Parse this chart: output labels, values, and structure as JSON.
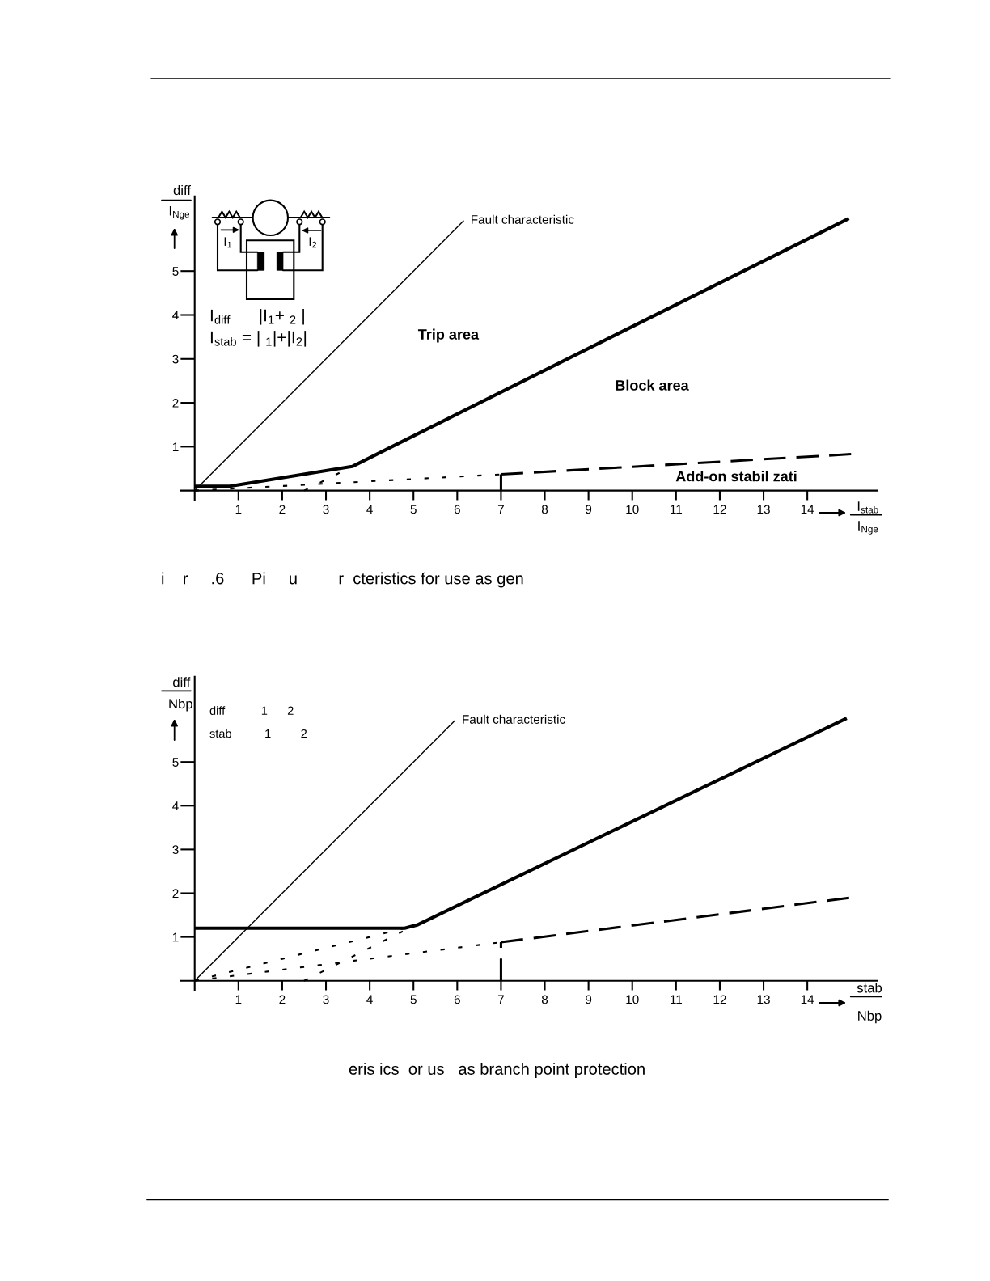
{
  "chart_data": [
    {
      "type": "line",
      "xlabel": "I$_{stab}$\nI$_{Nge}$",
      "ylabel": "diff\nI$_{Nge}$",
      "xlim": [
        -0.32,
        15.6
      ],
      "ylim": [
        -0.22,
        6.7
      ],
      "xticks": [
        1,
        2,
        3,
        4,
        5,
        6,
        7,
        8,
        9,
        10,
        11,
        12,
        13,
        14
      ],
      "yticks": [
        1,
        2,
        3,
        4,
        5
      ],
      "series": [
        {
          "name": "Fault characteristic",
          "color": "#000000",
          "line_style": "solid",
          "x": [
            0,
            6.15
          ],
          "values": [
            0,
            6.15
          ]
        },
        {
          "color": "#000000",
          "line_style": "solid",
          "x": [
            0,
            0.8,
            3.6,
            14.95
          ],
          "values": [
            0.1,
            0.1,
            0.55,
            6.2
          ]
        },
        {
          "color": "#000000",
          "line_style": "dotted",
          "x": [
            2.5,
            3.6
          ],
          "values": [
            0,
            0.55
          ]
        },
        {
          "color": "#000000",
          "line_style": "dotted",
          "x": [
            0,
            7
          ],
          "values": [
            0,
            0.37
          ]
        },
        {
          "color": "#000000",
          "line_style": "dashed",
          "x": [
            7,
            15
          ],
          "values": [
            0.37,
            0.83
          ]
        },
        {
          "color": "#000000",
          "line_style": "dashed",
          "x": [
            7,
            7
          ],
          "values": [
            0,
            0.37
          ]
        }
      ],
      "annotations": [
        "Trip area",
        "Block area",
        "Add-on stabil zati",
        "I$_{diff}$      |I$_{1}$+ $_{2}$ |",
        "I$_{stab}$ = | $_{1}$|+|I$_{2}$|",
        "I$_{1}$",
        "I$_{2}$",
        "i    r     .6      Pi     u         r  cteristics for use as gen"
      ]
    },
    {
      "type": "line",
      "xlabel": "stab\nNbp",
      "ylabel": "diff\nNbp",
      "xlim": [
        -0.32,
        15.6
      ],
      "ylim": [
        -0.22,
        6.95
      ],
      "xticks": [
        1,
        2,
        3,
        4,
        5,
        6,
        7,
        8,
        9,
        10,
        11,
        12,
        13,
        14
      ],
      "yticks": [
        1,
        2,
        3,
        4,
        5
      ],
      "series": [
        {
          "name": "Fault characteristic",
          "color": "#000000",
          "line_style": "solid",
          "x": [
            0,
            5.95
          ],
          "values": [
            0,
            5.95
          ]
        },
        {
          "color": "#000000",
          "line_style": "solid",
          "x": [
            0,
            4.8,
            5.1,
            14.9
          ],
          "values": [
            1.2,
            1.2,
            1.28,
            6.0
          ]
        },
        {
          "color": "#000000",
          "line_style": "dotted",
          "x": [
            0,
            4.8
          ],
          "values": [
            0,
            1.2
          ]
        },
        {
          "color": "#000000",
          "line_style": "dotted",
          "x": [
            2.5,
            4.9
          ],
          "values": [
            0,
            1.2
          ]
        },
        {
          "color": "#000000",
          "line_style": "dotted",
          "x": [
            0,
            7
          ],
          "values": [
            0,
            0.88
          ]
        },
        {
          "color": "#000000",
          "line_style": "dashed",
          "x": [
            7,
            15
          ],
          "values": [
            0.88,
            1.9
          ]
        },
        {
          "color": "#000000",
          "line_style": "dashed",
          "x": [
            7,
            7
          ],
          "values": [
            0,
            0.88
          ]
        }
      ],
      "annotations": [
        "diff           1      2",
        "stab          1         2",
        "eris ics  or us   as branch point protection"
      ]
    }
  ]
}
